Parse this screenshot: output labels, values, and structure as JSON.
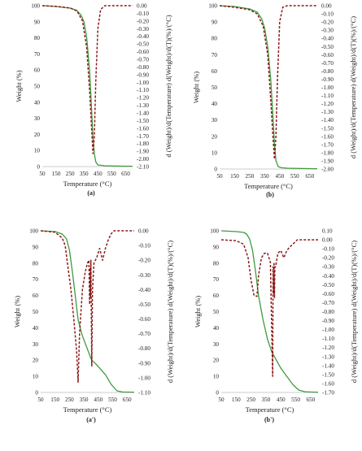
{
  "chart_data": [
    {
      "type": "line",
      "panel_label": "(a)",
      "xlabel": "Temperature (°C)",
      "ylabel": "Weight (%)",
      "y2label": "d (Weight)/d(Temperature) d(Weight)/d(T)(%)/(°C)",
      "xlim": [
        50,
        700
      ],
      "xticks": [
        50,
        150,
        250,
        350,
        450,
        550,
        650
      ],
      "ylim": [
        0,
        100
      ],
      "yticks": [
        0,
        10,
        20,
        30,
        40,
        50,
        60,
        70,
        80,
        90,
        100
      ],
      "y2lim": [
        -2.1,
        0.0
      ],
      "y2ticks": [
        "0.00",
        "-0.10",
        "-0.20",
        "-0.30",
        "-0.40",
        "-0.50",
        "-0.60",
        "-0.70",
        "-0.80",
        "-0.90",
        "-1.00",
        "-1.10",
        "-1.20",
        "-1.30",
        "-1.40",
        "-1.50",
        "-1.60",
        "-1.70",
        "-1.80",
        "-1.90",
        "-2.00",
        "-2.10"
      ],
      "series": [
        {
          "axis": "left",
          "color": "#3f9a3f",
          "style": "solid",
          "x": [
            50,
            150,
            250,
            300,
            330,
            350,
            370,
            390,
            405,
            415,
            425,
            435,
            450,
            500,
            600,
            700
          ],
          "y": [
            100,
            99.5,
            98.5,
            97,
            94,
            90,
            80,
            60,
            35,
            18,
            8,
            3,
            1,
            0.5,
            0.3,
            0.2
          ]
        },
        {
          "axis": "right",
          "color": "#8b1a1a",
          "style": "dashed",
          "x": [
            50,
            150,
            250,
            300,
            340,
            370,
            390,
            405,
            415,
            425,
            435,
            450,
            470,
            500,
            600,
            700
          ],
          "y": [
            0,
            -0.01,
            -0.03,
            -0.07,
            -0.2,
            -0.55,
            -1.1,
            -1.6,
            -1.93,
            -1.7,
            -1.0,
            -0.3,
            -0.05,
            0,
            0,
            0
          ]
        }
      ]
    },
    {
      "type": "line",
      "panel_label": "(b)",
      "xlabel": "Temperature (°C)",
      "ylabel": "Weight (%)",
      "y2label": "d (Weight)/d(Temperature) d(Weight)/d(T)(%)/(°C)",
      "xlim": [
        50,
        700
      ],
      "xticks": [
        50,
        150,
        250,
        350,
        450,
        550,
        650
      ],
      "ylim": [
        0,
        100
      ],
      "yticks": [
        0,
        10,
        20,
        30,
        40,
        50,
        60,
        70,
        80,
        90,
        100
      ],
      "y2lim": [
        -2.0,
        0.0
      ],
      "y2ticks": [
        "0.00",
        "-0.10",
        "-0.20",
        "-0.30",
        "-0.40",
        "-0.50",
        "-0.60",
        "-0.70",
        "-0.80",
        "-0.90",
        "-1.00",
        "-1.10",
        "-1.20",
        "-1.30",
        "-1.40",
        "-1.50",
        "-1.60",
        "-1.70",
        "-1.80",
        "-1.90",
        "-2.00"
      ],
      "series": [
        {
          "axis": "left",
          "color": "#3f9a3f",
          "style": "solid",
          "x": [
            50,
            150,
            250,
            300,
            330,
            350,
            370,
            390,
            405,
            415,
            425,
            440,
            460,
            500,
            600,
            700
          ],
          "y": [
            100,
            99.5,
            98,
            96,
            92,
            86,
            75,
            55,
            32,
            15,
            5,
            1.5,
            0.8,
            0.5,
            0.3,
            0.2
          ]
        },
        {
          "axis": "right",
          "color": "#8b1a1a",
          "style": "dashed",
          "x": [
            50,
            150,
            250,
            300,
            340,
            370,
            390,
            405,
            415,
            425,
            435,
            450,
            470,
            500,
            600,
            700
          ],
          "y": [
            0,
            -0.02,
            -0.05,
            -0.1,
            -0.25,
            -0.6,
            -1.15,
            -1.6,
            -1.88,
            -1.6,
            -0.9,
            -0.2,
            -0.02,
            0,
            0,
            0
          ]
        }
      ]
    },
    {
      "type": "line",
      "panel_label": "(a')",
      "xlabel": "Temperature (°C)",
      "ylabel": "Weight (%)",
      "y2label": "d (Weight)/d(Temperature) d(Weight)/d(T)(%)/(°C)",
      "xlim": [
        50,
        700
      ],
      "xticks": [
        50,
        150,
        250,
        350,
        450,
        550,
        650
      ],
      "ylim": [
        0,
        100
      ],
      "yticks": [
        0,
        10,
        20,
        30,
        40,
        50,
        60,
        70,
        80,
        90,
        100
      ],
      "y2lim": [
        -1.1,
        0.0
      ],
      "y2ticks": [
        "0.00",
        "-0.10",
        "-0.20",
        "-0.30",
        "-0.40",
        "-0.50",
        "-0.60",
        "-0.70",
        "-0.80",
        "-0.90",
        "-1.00",
        "-1.10"
      ],
      "series": [
        {
          "axis": "left",
          "color": "#3f9a3f",
          "style": "solid",
          "x": [
            50,
            150,
            200,
            230,
            250,
            270,
            290,
            310,
            340,
            370,
            395,
            405,
            430,
            460,
            500,
            540,
            580,
            620,
            700
          ],
          "y": [
            100,
            99.5,
            98,
            95,
            88,
            75,
            60,
            45,
            35,
            28,
            22,
            20,
            18,
            15,
            11,
            5,
            1,
            0.3,
            0.2
          ]
        },
        {
          "axis": "right",
          "color": "#8b1a1a",
          "style": "dashed",
          "x": [
            50,
            150,
            200,
            220,
            240,
            260,
            280,
            300,
            310,
            320,
            340,
            360,
            375,
            385,
            390,
            393,
            396,
            399,
            402,
            405,
            410,
            420,
            440,
            460,
            480,
            500,
            520,
            540,
            560,
            580,
            700
          ],
          "y": [
            0,
            -0.01,
            -0.05,
            -0.1,
            -0.25,
            -0.4,
            -0.6,
            -0.82,
            -1.03,
            -0.7,
            -0.4,
            -0.28,
            -0.22,
            -0.2,
            -0.5,
            -0.25,
            -0.45,
            -0.2,
            -0.6,
            -0.92,
            -0.4,
            -0.22,
            -0.18,
            -0.12,
            -0.2,
            -0.12,
            -0.06,
            -0.02,
            0,
            0,
            0
          ]
        }
      ]
    },
    {
      "type": "line",
      "panel_label": "(b')",
      "xlabel": "Temperature (°C)",
      "ylabel": "Weight (%)",
      "y2label": "d (Weight)/d(Temperature) d(Weight)/d(T)(%)/(°C)",
      "xlim": [
        50,
        700
      ],
      "xticks": [
        50,
        150,
        250,
        350,
        450,
        550,
        650
      ],
      "ylim": [
        0,
        100
      ],
      "yticks": [
        0,
        10,
        20,
        30,
        40,
        50,
        60,
        70,
        80,
        90,
        100
      ],
      "y2lim": [
        -1.7,
        0.1
      ],
      "y2ticks": [
        "0.10",
        "0.00",
        "-0.10",
        "-0.20",
        "-0.30",
        "-0.40",
        "-0.50",
        "-0.60",
        "-0.70",
        "-0.80",
        "-0.90",
        "-1.00",
        "-1.10",
        "-1.20",
        "-1.30",
        "-1.40",
        "-1.50",
        "-1.60",
        "-1.70"
      ],
      "series": [
        {
          "axis": "left",
          "color": "#3f9a3f",
          "style": "solid",
          "x": [
            50,
            150,
            200,
            220,
            240,
            260,
            280,
            300,
            330,
            360,
            390,
            420,
            450,
            490,
            530,
            570,
            610,
            650,
            700
          ],
          "y": [
            100,
            99.5,
            99,
            98,
            95,
            88,
            75,
            60,
            45,
            33,
            25,
            20,
            15,
            10,
            5,
            1.5,
            0.5,
            0.3,
            0.2
          ]
        },
        {
          "axis": "right",
          "color": "#8b1a1a",
          "style": "dashed",
          "x": [
            50,
            150,
            200,
            230,
            250,
            270,
            290,
            300,
            320,
            340,
            360,
            380,
            395,
            398,
            401,
            404,
            407,
            410,
            415,
            430,
            450,
            470,
            490,
            510,
            530,
            560,
            600,
            700
          ],
          "y": [
            0,
            -0.01,
            -0.05,
            -0.2,
            -0.45,
            -0.62,
            -0.63,
            -0.4,
            -0.2,
            -0.15,
            -0.15,
            -0.25,
            -1.52,
            -0.3,
            -0.6,
            -0.25,
            -0.65,
            -0.3,
            -0.3,
            -0.15,
            -0.12,
            -0.2,
            -0.12,
            -0.08,
            -0.05,
            0,
            0,
            0
          ]
        }
      ]
    }
  ]
}
